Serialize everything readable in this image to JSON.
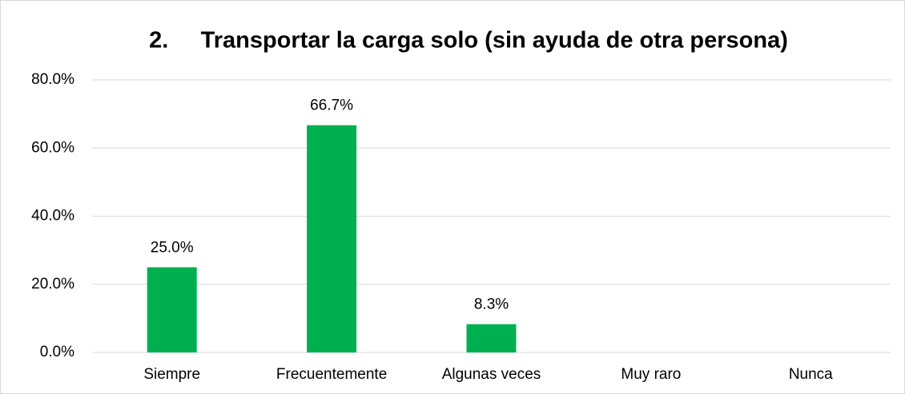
{
  "chart_data": {
    "type": "bar",
    "title": "2.     Transportar la carga solo (sin ayuda de otra persona)",
    "categories": [
      "Siempre",
      "Frecuentemente",
      "Algunas veces",
      "Muy raro",
      "Nunca"
    ],
    "values": [
      25.0,
      66.7,
      8.3,
      0,
      0
    ],
    "value_labels": [
      "25.0%",
      "66.7%",
      "8.3%",
      null,
      null
    ],
    "color": "#00b050",
    "ylim": [
      0,
      80
    ],
    "yticks": [
      {
        "value": 0,
        "label": "0.0%"
      },
      {
        "value": 20,
        "label": "20.0%"
      },
      {
        "value": 40,
        "label": "40.0%"
      },
      {
        "value": 60,
        "label": "60.0%"
      },
      {
        "value": 80,
        "label": "80.0%"
      }
    ],
    "grid": true
  }
}
